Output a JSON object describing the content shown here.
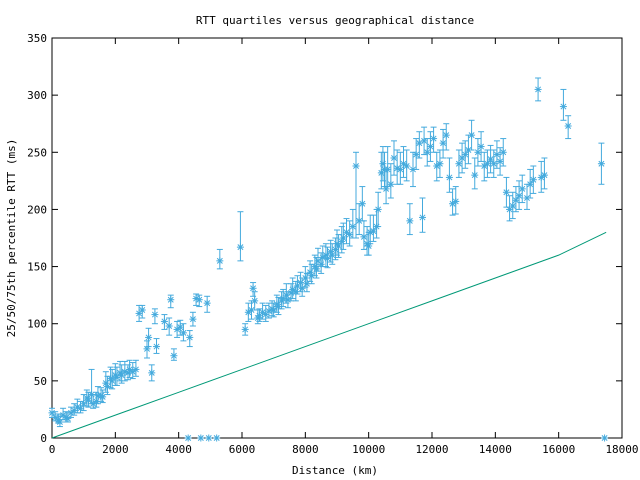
{
  "chart_data": {
    "type": "scatter",
    "title": "RTT quartiles versus geographical distance",
    "xlabel": "Distance (km)",
    "ylabel": "25/50/75th percentile RTT (ms)",
    "xlim": [
      0,
      18000
    ],
    "ylim": [
      0,
      350
    ],
    "xticks": [
      0,
      2000,
      4000,
      6000,
      8000,
      10000,
      12000,
      14000,
      16000,
      18000
    ],
    "yticks": [
      0,
      50,
      100,
      150,
      200,
      250,
      300,
      350
    ],
    "grid": false,
    "legend": "none",
    "colors": {
      "points": "#44aadd",
      "line": "#009977",
      "axes": "#000000"
    },
    "series": [
      {
        "kind": "errorbars",
        "points": [
          [
            0,
            22,
            18,
            26
          ],
          [
            100,
            18,
            15,
            23
          ],
          [
            200,
            16,
            13,
            21
          ],
          [
            250,
            14,
            10,
            19
          ],
          [
            350,
            20,
            16,
            26
          ],
          [
            450,
            18,
            14,
            23
          ],
          [
            500,
            17,
            14,
            22
          ],
          [
            600,
            22,
            18,
            27
          ],
          [
            700,
            24,
            20,
            30
          ],
          [
            800,
            27,
            22,
            34
          ],
          [
            900,
            26,
            22,
            32
          ],
          [
            1000,
            30,
            24,
            38
          ],
          [
            1100,
            35,
            28,
            42
          ],
          [
            1150,
            33,
            27,
            40
          ],
          [
            1250,
            38,
            30,
            60
          ],
          [
            1300,
            30,
            26,
            38
          ],
          [
            1400,
            32,
            27,
            40
          ],
          [
            1450,
            37,
            30,
            45
          ],
          [
            1550,
            37,
            32,
            44
          ],
          [
            1600,
            36,
            31,
            42
          ],
          [
            1700,
            48,
            40,
            58
          ],
          [
            1750,
            45,
            38,
            54
          ],
          [
            1850,
            52,
            44,
            62
          ],
          [
            1900,
            50,
            43,
            60
          ],
          [
            2000,
            55,
            46,
            65
          ],
          [
            2050,
            53,
            46,
            62
          ],
          [
            2150,
            57,
            50,
            67
          ],
          [
            2200,
            55,
            48,
            64
          ],
          [
            2300,
            58,
            50,
            67
          ],
          [
            2400,
            57,
            51,
            64
          ],
          [
            2450,
            60,
            53,
            68
          ],
          [
            2550,
            58,
            52,
            66
          ],
          [
            2650,
            60,
            54,
            68
          ],
          [
            2750,
            109,
            102,
            116
          ],
          [
            2850,
            112,
            105,
            116
          ],
          [
            3000,
            78,
            70,
            85
          ],
          [
            3050,
            88,
            80,
            96
          ],
          [
            3150,
            57,
            50,
            64
          ],
          [
            3250,
            108,
            100,
            113
          ],
          [
            3300,
            80,
            74,
            87
          ],
          [
            3550,
            102,
            95,
            108
          ],
          [
            3700,
            98,
            90,
            105
          ],
          [
            3750,
            121,
            114,
            125
          ],
          [
            3850,
            72,
            68,
            78
          ],
          [
            3950,
            95,
            88,
            102
          ],
          [
            4050,
            97,
            90,
            103
          ],
          [
            4150,
            92,
            85,
            100
          ],
          [
            4300,
            0,
            0,
            0
          ],
          [
            4350,
            88,
            80,
            94
          ],
          [
            4450,
            104,
            98,
            110
          ],
          [
            4550,
            122,
            116,
            126
          ],
          [
            4650,
            121,
            115,
            125
          ],
          [
            4700,
            0,
            0,
            0
          ],
          [
            4900,
            118,
            110,
            124
          ],
          [
            4950,
            0,
            0,
            0
          ],
          [
            5200,
            0,
            0,
            0
          ],
          [
            5300,
            155,
            148,
            165
          ],
          [
            5950,
            167,
            155,
            198
          ],
          [
            6100,
            95,
            90,
            100
          ],
          [
            6200,
            110,
            102,
            118
          ],
          [
            6300,
            112,
            104,
            120
          ],
          [
            6350,
            131,
            124,
            136
          ],
          [
            6400,
            120,
            112,
            128
          ],
          [
            6500,
            105,
            100,
            112
          ],
          [
            6550,
            107,
            102,
            113
          ],
          [
            6650,
            110,
            104,
            118
          ],
          [
            6750,
            108,
            102,
            116
          ],
          [
            6850,
            111,
            105,
            118
          ],
          [
            6950,
            113,
            107,
            120
          ],
          [
            7000,
            112,
            106,
            118
          ],
          [
            7100,
            117,
            110,
            125
          ],
          [
            7150,
            115,
            108,
            123
          ],
          [
            7250,
            120,
            113,
            128
          ],
          [
            7300,
            122,
            115,
            130
          ],
          [
            7400,
            125,
            118,
            135
          ],
          [
            7450,
            121,
            114,
            128
          ],
          [
            7550,
            127,
            120,
            135
          ],
          [
            7600,
            130,
            122,
            140
          ],
          [
            7700,
            128,
            120,
            137
          ],
          [
            7750,
            133,
            126,
            142
          ],
          [
            7850,
            136,
            128,
            145
          ],
          [
            7900,
            131,
            124,
            140
          ],
          [
            8000,
            140,
            132,
            150
          ],
          [
            8050,
            135,
            128,
            144
          ],
          [
            8150,
            145,
            137,
            155
          ],
          [
            8200,
            142,
            135,
            152
          ],
          [
            8300,
            150,
            142,
            160
          ],
          [
            8350,
            148,
            140,
            158
          ],
          [
            8400,
            155,
            146,
            166
          ],
          [
            8500,
            152,
            144,
            162
          ],
          [
            8550,
            158,
            150,
            168
          ],
          [
            8650,
            160,
            150,
            170
          ],
          [
            8700,
            157,
            149,
            167
          ],
          [
            8800,
            163,
            154,
            173
          ],
          [
            8850,
            160,
            152,
            170
          ],
          [
            8950,
            165,
            156,
            175
          ],
          [
            9000,
            170,
            160,
            182
          ],
          [
            9050,
            168,
            158,
            178
          ],
          [
            9150,
            172,
            162,
            185
          ],
          [
            9200,
            175,
            165,
            188
          ],
          [
            9300,
            180,
            170,
            192
          ],
          [
            9400,
            178,
            168,
            190
          ],
          [
            9500,
            185,
            175,
            200
          ],
          [
            9600,
            238,
            175,
            250
          ],
          [
            9700,
            190,
            178,
            205
          ],
          [
            9800,
            205,
            190,
            220
          ],
          [
            9850,
            176,
            165,
            190
          ],
          [
            9950,
            170,
            160,
            185
          ],
          [
            10000,
            168,
            160,
            180
          ],
          [
            10050,
            180,
            170,
            195
          ],
          [
            10150,
            181,
            172,
            195
          ],
          [
            10250,
            185,
            175,
            200
          ],
          [
            10300,
            200,
            185,
            215
          ],
          [
            10400,
            232,
            218,
            250
          ],
          [
            10450,
            240,
            225,
            255
          ],
          [
            10500,
            235,
            220,
            250
          ],
          [
            10550,
            218,
            205,
            235
          ],
          [
            10600,
            235,
            220,
            255
          ],
          [
            10700,
            222,
            210,
            240
          ],
          [
            10800,
            245,
            230,
            260
          ],
          [
            10900,
            236,
            222,
            252
          ],
          [
            11000,
            235,
            222,
            250
          ],
          [
            11100,
            240,
            228,
            255
          ],
          [
            11200,
            238,
            225,
            252
          ],
          [
            11300,
            190,
            178,
            205
          ],
          [
            11400,
            235,
            220,
            250
          ],
          [
            11500,
            248,
            235,
            262
          ],
          [
            11600,
            258,
            245,
            268
          ],
          [
            11700,
            193,
            180,
            210
          ],
          [
            11750,
            260,
            248,
            272
          ],
          [
            11850,
            250,
            238,
            262
          ],
          [
            11950,
            255,
            242,
            268
          ],
          [
            12050,
            262,
            250,
            272
          ],
          [
            12150,
            238,
            225,
            250
          ],
          [
            12250,
            240,
            228,
            252
          ],
          [
            12350,
            258,
            245,
            270
          ],
          [
            12450,
            265,
            252,
            275
          ],
          [
            12550,
            228,
            215,
            245
          ],
          [
            12650,
            205,
            195,
            218
          ],
          [
            12750,
            207,
            196,
            220
          ],
          [
            12850,
            240,
            228,
            252
          ],
          [
            12950,
            245,
            232,
            258
          ],
          [
            13050,
            248,
            236,
            260
          ],
          [
            13150,
            252,
            240,
            265
          ],
          [
            13250,
            265,
            252,
            278
          ],
          [
            13350,
            230,
            218,
            245
          ],
          [
            13450,
            250,
            238,
            262
          ],
          [
            13550,
            255,
            242,
            268
          ],
          [
            13650,
            238,
            225,
            250
          ],
          [
            13750,
            240,
            228,
            252
          ],
          [
            13850,
            244,
            232,
            256
          ],
          [
            13950,
            240,
            228,
            252
          ],
          [
            14050,
            248,
            236,
            260
          ],
          [
            14150,
            242,
            230,
            254
          ],
          [
            14250,
            250,
            238,
            262
          ],
          [
            14350,
            215,
            202,
            228
          ],
          [
            14450,
            200,
            190,
            212
          ],
          [
            14550,
            203,
            192,
            215
          ],
          [
            14650,
            208,
            198,
            220
          ],
          [
            14750,
            212,
            200,
            225
          ],
          [
            14850,
            218,
            206,
            230
          ],
          [
            15000,
            210,
            200,
            222
          ],
          [
            15100,
            222,
            210,
            235
          ],
          [
            15200,
            226,
            214,
            238
          ],
          [
            15350,
            305,
            295,
            315
          ],
          [
            15450,
            228,
            215,
            242
          ],
          [
            15550,
            230,
            218,
            245
          ],
          [
            16150,
            290,
            278,
            305
          ],
          [
            16300,
            273,
            262,
            282
          ],
          [
            17350,
            240,
            222,
            258
          ],
          [
            17450,
            0,
            0,
            0
          ]
        ]
      },
      {
        "kind": "line",
        "points": [
          [
            0,
            0
          ],
          [
            2000,
            20
          ],
          [
            4000,
            40
          ],
          [
            6000,
            60
          ],
          [
            8000,
            80
          ],
          [
            10000,
            100
          ],
          [
            12000,
            120
          ],
          [
            14000,
            140
          ],
          [
            16000,
            160
          ],
          [
            17500,
            180
          ]
        ]
      }
    ]
  }
}
